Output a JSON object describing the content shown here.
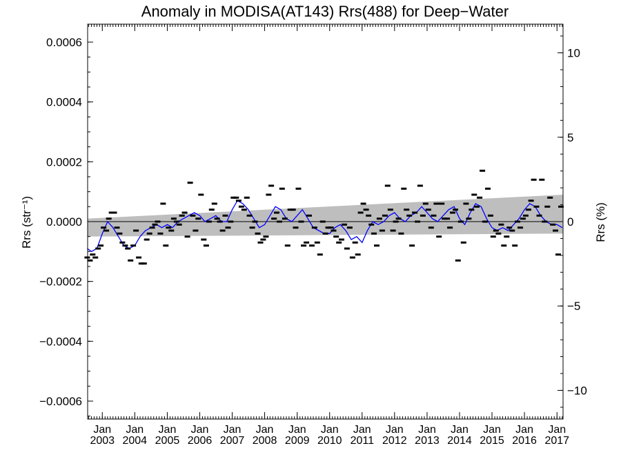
{
  "chart_data": {
    "type": "scatter",
    "title": "Anomaly in MODISA(AT143) Rrs(488) for Deep−Water",
    "ylabel_left": "Rrs (str⁻¹)",
    "ylabel_right": "Rrs (%)",
    "xlim": [
      "2002-07-20",
      "2017-03-10"
    ],
    "ylim_left": [
      -0.00066,
      0.00066
    ],
    "ylim_right": [
      -11.7,
      11.7
    ],
    "x_ticks": [
      {
        "month": "Jan",
        "year": "2003",
        "date": "2003-01-01"
      },
      {
        "month": "Jan",
        "year": "2004",
        "date": "2004-01-01"
      },
      {
        "month": "Jan",
        "year": "2005",
        "date": "2005-01-01"
      },
      {
        "month": "Jan",
        "year": "2006",
        "date": "2006-01-01"
      },
      {
        "month": "Jan",
        "year": "2007",
        "date": "2007-01-01"
      },
      {
        "month": "Jan",
        "year": "2008",
        "date": "2008-01-01"
      },
      {
        "month": "Jan",
        "year": "2009",
        "date": "2009-01-01"
      },
      {
        "month": "Jan",
        "year": "2010",
        "date": "2010-01-01"
      },
      {
        "month": "Jan",
        "year": "2011",
        "date": "2011-01-01"
      },
      {
        "month": "Jan",
        "year": "2012",
        "date": "2012-01-01"
      },
      {
        "month": "Jan",
        "year": "2013",
        "date": "2013-01-01"
      },
      {
        "month": "Jan",
        "year": "2014",
        "date": "2014-01-01"
      },
      {
        "month": "Jan",
        "year": "2015",
        "date": "2015-01-01"
      },
      {
        "month": "Jan",
        "year": "2016",
        "date": "2016-01-01"
      },
      {
        "month": "Jan",
        "year": "2017",
        "date": "2017-01-01"
      }
    ],
    "y_ticks_left": [
      {
        "value": 0.0006,
        "label": "0.0006"
      },
      {
        "value": 0.0004,
        "label": "0.0004"
      },
      {
        "value": 0.0002,
        "label": "0.0002"
      },
      {
        "value": 0.0,
        "label": "0.0000"
      },
      {
        "value": -0.0002,
        "label": "−0.0002"
      },
      {
        "value": -0.0004,
        "label": "−0.0004"
      },
      {
        "value": -0.0006,
        "label": "−0.0006"
      }
    ],
    "y_ticks_right": [
      {
        "value": 10,
        "label": "10"
      },
      {
        "value": 5,
        "label": "5"
      },
      {
        "value": 0,
        "label": "0"
      },
      {
        "value": -5,
        "label": "−5"
      },
      {
        "value": -10,
        "label": "−10"
      }
    ],
    "zero_line": 0.0,
    "band": {
      "start": {
        "date": "2002-07-20",
        "lower": -5e-05,
        "upper": 1e-05
      },
      "end": {
        "date": "2017-03-10",
        "lower": -4e-05,
        "upper": 9e-05
      },
      "color": "#bebebe"
    },
    "smoothed_line": {
      "color": "#0000ff",
      "points": [
        [
          "2002-07-15",
          -9e-05
        ],
        [
          "2002-09-01",
          -0.0001
        ],
        [
          "2002-11-01",
          -9e-05
        ],
        [
          "2003-01-01",
          -4e-05
        ],
        [
          "2003-03-01",
          0.0
        ],
        [
          "2003-05-01",
          -2e-05
        ],
        [
          "2003-07-01",
          -5e-05
        ],
        [
          "2003-09-01",
          -8e-05
        ],
        [
          "2003-11-01",
          -9e-05
        ],
        [
          "2004-01-01",
          -8e-05
        ],
        [
          "2004-03-01",
          -5e-05
        ],
        [
          "2004-05-01",
          -3e-05
        ],
        [
          "2004-07-01",
          -2e-05
        ],
        [
          "2004-09-01",
          -1e-05
        ],
        [
          "2004-11-01",
          -2e-05
        ],
        [
          "2005-01-01",
          -1e-05
        ],
        [
          "2005-03-01",
          -2e-05
        ],
        [
          "2005-05-01",
          0.0
        ],
        [
          "2005-07-01",
          1e-05
        ],
        [
          "2005-09-01",
          2e-05
        ],
        [
          "2005-11-01",
          3e-05
        ],
        [
          "2006-01-01",
          2e-05
        ],
        [
          "2006-03-01",
          0.0
        ],
        [
          "2006-05-01",
          1e-05
        ],
        [
          "2006-07-01",
          2e-05
        ],
        [
          "2006-09-01",
          0.0
        ],
        [
          "2006-11-01",
          0.0
        ],
        [
          "2007-01-01",
          4e-05
        ],
        [
          "2007-03-01",
          7e-05
        ],
        [
          "2007-05-01",
          6e-05
        ],
        [
          "2007-07-01",
          4e-05
        ],
        [
          "2007-09-01",
          1e-05
        ],
        [
          "2007-11-01",
          -2e-05
        ],
        [
          "2008-01-01",
          -1e-05
        ],
        [
          "2008-03-01",
          2e-05
        ],
        [
          "2008-05-01",
          5e-05
        ],
        [
          "2008-07-01",
          4e-05
        ],
        [
          "2008-09-01",
          1e-05
        ],
        [
          "2008-11-01",
          0.0
        ],
        [
          "2009-01-01",
          2e-05
        ],
        [
          "2009-03-01",
          4e-05
        ],
        [
          "2009-05-01",
          1e-05
        ],
        [
          "2009-07-01",
          -2e-05
        ],
        [
          "2009-09-01",
          -3e-05
        ],
        [
          "2009-11-01",
          -4e-05
        ],
        [
          "2010-01-01",
          -4e-05
        ],
        [
          "2010-03-01",
          -2e-05
        ],
        [
          "2010-05-01",
          -1e-05
        ],
        [
          "2010-07-01",
          -3e-05
        ],
        [
          "2010-09-01",
          -6e-05
        ],
        [
          "2010-11-01",
          -5e-05
        ],
        [
          "2011-01-01",
          -7e-05
        ],
        [
          "2011-03-01",
          -3e-05
        ],
        [
          "2011-05-01",
          0.0
        ],
        [
          "2011-07-01",
          -1e-05
        ],
        [
          "2011-09-01",
          0.0
        ],
        [
          "2011-11-01",
          2e-05
        ],
        [
          "2012-01-01",
          3e-05
        ],
        [
          "2012-03-01",
          1e-05
        ],
        [
          "2012-05-01",
          0.0
        ],
        [
          "2012-07-01",
          2e-05
        ],
        [
          "2012-09-01",
          3e-05
        ],
        [
          "2012-11-01",
          5e-05
        ],
        [
          "2013-01-01",
          3e-05
        ],
        [
          "2013-03-01",
          1e-05
        ],
        [
          "2013-05-01",
          0.0
        ],
        [
          "2013-07-01",
          2e-05
        ],
        [
          "2013-09-01",
          4e-05
        ],
        [
          "2013-11-01",
          5e-05
        ],
        [
          "2014-01-01",
          1e-05
        ],
        [
          "2014-03-01",
          -1e-05
        ],
        [
          "2014-05-01",
          3e-05
        ],
        [
          "2014-07-01",
          6e-05
        ],
        [
          "2014-09-01",
          5e-05
        ],
        [
          "2014-11-01",
          1e-05
        ],
        [
          "2015-01-01",
          -2e-05
        ],
        [
          "2015-03-01",
          -3e-05
        ],
        [
          "2015-05-01",
          -2e-05
        ],
        [
          "2015-07-01",
          -3e-05
        ],
        [
          "2015-09-01",
          -1e-05
        ],
        [
          "2015-11-01",
          1e-05
        ],
        [
          "2016-01-01",
          4e-05
        ],
        [
          "2016-03-01",
          6e-05
        ],
        [
          "2016-05-01",
          5e-05
        ],
        [
          "2016-07-01",
          2e-05
        ],
        [
          "2016-09-01",
          0.0
        ],
        [
          "2016-11-01",
          -1e-05
        ],
        [
          "2017-01-01",
          -1e-05
        ],
        [
          "2017-03-01",
          -2e-05
        ]
      ]
    },
    "monthly_points": {
      "color": "#000000",
      "points": [
        [
          "2002-07-15",
          -0.00012
        ],
        [
          "2002-08-15",
          -0.00013
        ],
        [
          "2002-09-15",
          -0.00011
        ],
        [
          "2002-10-15",
          -0.00012
        ],
        [
          "2002-11-15",
          -9e-05
        ],
        [
          "2002-12-15",
          -8e-05
        ],
        [
          "2003-01-15",
          -2e-05
        ],
        [
          "2003-02-15",
          -3e-05
        ],
        [
          "2003-03-15",
          1e-05
        ],
        [
          "2003-04-15",
          3e-05
        ],
        [
          "2003-05-15",
          3e-05
        ],
        [
          "2003-06-15",
          -2e-05
        ],
        [
          "2003-07-15",
          -4e-05
        ],
        [
          "2003-08-15",
          -7e-05
        ],
        [
          "2003-09-15",
          -8e-05
        ],
        [
          "2003-10-15",
          -9e-05
        ],
        [
          "2003-11-15",
          -0.00013
        ],
        [
          "2003-12-15",
          -8e-05
        ],
        [
          "2004-01-15",
          -3e-05
        ],
        [
          "2004-02-15",
          -0.00012
        ],
        [
          "2004-03-15",
          -0.00014
        ],
        [
          "2004-04-15",
          -0.00014
        ],
        [
          "2004-05-15",
          -6e-05
        ],
        [
          "2004-06-15",
          -4e-05
        ],
        [
          "2004-07-15",
          -2e-05
        ],
        [
          "2004-08-15",
          -1e-05
        ],
        [
          "2004-09-15",
          0.0
        ],
        [
          "2004-10-15",
          -4e-05
        ],
        [
          "2004-11-15",
          6e-05
        ],
        [
          "2004-12-15",
          -8e-05
        ],
        [
          "2005-01-15",
          -2e-05
        ],
        [
          "2005-02-15",
          -3e-05
        ],
        [
          "2005-03-15",
          1e-05
        ],
        [
          "2005-04-15",
          0.0
        ],
        [
          "2005-05-15",
          -1e-05
        ],
        [
          "2005-06-15",
          2e-05
        ],
        [
          "2005-07-15",
          3e-05
        ],
        [
          "2005-08-15",
          -5e-05
        ],
        [
          "2005-09-15",
          0.00013
        ],
        [
          "2005-10-15",
          2e-05
        ],
        [
          "2005-11-15",
          -3e-05
        ],
        [
          "2005-12-15",
          1e-05
        ],
        [
          "2006-01-15",
          9e-05
        ],
        [
          "2006-02-15",
          -6e-05
        ],
        [
          "2006-03-15",
          -8e-05
        ],
        [
          "2006-04-15",
          0.0
        ],
        [
          "2006-05-15",
          4e-05
        ],
        [
          "2006-06-15",
          6e-05
        ],
        [
          "2006-07-15",
          1e-05
        ],
        [
          "2006-08-15",
          0.0
        ],
        [
          "2006-09-15",
          -3e-05
        ],
        [
          "2006-10-15",
          2e-05
        ],
        [
          "2006-11-15",
          -2e-05
        ],
        [
          "2006-12-15",
          0.0
        ],
        [
          "2007-01-15",
          8e-05
        ],
        [
          "2007-02-15",
          8e-05
        ],
        [
          "2007-03-15",
          7e-05
        ],
        [
          "2007-04-15",
          5e-05
        ],
        [
          "2007-05-15",
          4e-05
        ],
        [
          "2007-06-15",
          8e-05
        ],
        [
          "2007-07-15",
          2e-05
        ],
        [
          "2007-08-15",
          -2e-05
        ],
        [
          "2007-09-15",
          0.0
        ],
        [
          "2007-10-15",
          -4e-05
        ],
        [
          "2007-11-15",
          -7e-05
        ],
        [
          "2007-12-15",
          -6e-05
        ],
        [
          "2008-01-15",
          -5e-05
        ],
        [
          "2008-02-15",
          9e-05
        ],
        [
          "2008-03-15",
          0.00012
        ],
        [
          "2008-04-15",
          1e-05
        ],
        [
          "2008-05-15",
          3e-05
        ],
        [
          "2008-06-15",
          0.0
        ],
        [
          "2008-07-15",
          0.00011
        ],
        [
          "2008-08-15",
          1e-05
        ],
        [
          "2008-09-15",
          -8e-05
        ],
        [
          "2008-10-15",
          4e-05
        ],
        [
          "2008-11-15",
          4e-05
        ],
        [
          "2008-12-15",
          -2e-05
        ],
        [
          "2009-01-15",
          0.00011
        ],
        [
          "2009-02-15",
          0.0
        ],
        [
          "2009-03-15",
          -8e-05
        ],
        [
          "2009-04-15",
          -7e-05
        ],
        [
          "2009-05-15",
          2e-05
        ],
        [
          "2009-06-15",
          -8e-05
        ],
        [
          "2009-07-15",
          -2e-05
        ],
        [
          "2009-08-15",
          -7e-05
        ],
        [
          "2009-09-15",
          -0.00011
        ],
        [
          "2009-10-15",
          0.0
        ],
        [
          "2009-11-15",
          -4e-05
        ],
        [
          "2009-12-15",
          -2e-05
        ],
        [
          "2010-01-15",
          -2e-05
        ],
        [
          "2010-02-15",
          -3e-05
        ],
        [
          "2010-03-15",
          -5e-05
        ],
        [
          "2010-04-15",
          -7e-05
        ],
        [
          "2010-05-15",
          -6e-05
        ],
        [
          "2010-06-15",
          -1e-05
        ],
        [
          "2010-07-15",
          -9e-05
        ],
        [
          "2010-08-15",
          -2e-05
        ],
        [
          "2010-09-15",
          -0.00012
        ],
        [
          "2010-10-15",
          -7e-05
        ],
        [
          "2010-11-15",
          -0.00011
        ],
        [
          "2010-12-15",
          3e-05
        ],
        [
          "2011-01-15",
          6e-05
        ],
        [
          "2011-02-15",
          4e-05
        ],
        [
          "2011-03-15",
          2e-05
        ],
        [
          "2011-04-15",
          -1e-05
        ],
        [
          "2011-05-15",
          -4e-05
        ],
        [
          "2011-06-15",
          -8e-05
        ],
        [
          "2011-07-15",
          1e-05
        ],
        [
          "2011-08-15",
          -3e-05
        ],
        [
          "2011-09-15",
          2e-05
        ],
        [
          "2011-10-15",
          0.00012
        ],
        [
          "2011-11-15",
          4e-05
        ],
        [
          "2011-12-15",
          -3e-05
        ],
        [
          "2012-01-15",
          0.0
        ],
        [
          "2012-02-15",
          1e-05
        ],
        [
          "2012-03-15",
          -4e-05
        ],
        [
          "2012-04-15",
          0.00011
        ],
        [
          "2012-05-15",
          4e-05
        ],
        [
          "2012-06-15",
          2e-05
        ],
        [
          "2012-07-15",
          -8e-05
        ],
        [
          "2012-08-15",
          3e-05
        ],
        [
          "2012-09-15",
          0.0
        ],
        [
          "2012-10-15",
          0.00012
        ],
        [
          "2012-11-15",
          2e-05
        ],
        [
          "2012-12-15",
          6e-05
        ],
        [
          "2013-01-15",
          4e-05
        ],
        [
          "2013-02-15",
          -2e-05
        ],
        [
          "2013-03-15",
          2e-05
        ],
        [
          "2013-04-15",
          6e-05
        ],
        [
          "2013-05-15",
          -5e-05
        ],
        [
          "2013-06-15",
          6e-05
        ],
        [
          "2013-07-15",
          1e-05
        ],
        [
          "2013-08-15",
          1e-05
        ],
        [
          "2013-09-15",
          -2e-05
        ],
        [
          "2013-10-15",
          3e-05
        ],
        [
          "2013-11-15",
          4e-05
        ],
        [
          "2013-12-15",
          -0.00013
        ],
        [
          "2014-01-15",
          0.0
        ],
        [
          "2014-02-15",
          -7e-05
        ],
        [
          "2014-03-15",
          6e-05
        ],
        [
          "2014-04-15",
          1e-05
        ],
        [
          "2014-05-15",
          4e-05
        ],
        [
          "2014-06-15",
          9e-05
        ],
        [
          "2014-07-15",
          5e-05
        ],
        [
          "2014-08-15",
          8e-05
        ],
        [
          "2014-09-15",
          0.00017
        ],
        [
          "2014-10-15",
          0.0
        ],
        [
          "2014-11-15",
          0.00011
        ],
        [
          "2014-12-15",
          2e-05
        ],
        [
          "2015-01-15",
          -5e-05
        ],
        [
          "2015-02-15",
          -3e-05
        ],
        [
          "2015-03-15",
          -4e-05
        ],
        [
          "2015-04-15",
          -1e-05
        ],
        [
          "2015-05-15",
          -8e-05
        ],
        [
          "2015-06-15",
          -5e-05
        ],
        [
          "2015-07-15",
          -2e-05
        ],
        [
          "2015-08-15",
          -3e-05
        ],
        [
          "2015-09-15",
          -8e-05
        ],
        [
          "2015-10-15",
          0.0
        ],
        [
          "2015-11-15",
          -2e-05
        ],
        [
          "2015-12-15",
          1e-05
        ],
        [
          "2016-01-15",
          2e-05
        ],
        [
          "2016-02-15",
          4e-05
        ],
        [
          "2016-03-15",
          7e-05
        ],
        [
          "2016-04-15",
          0.00014
        ],
        [
          "2016-05-15",
          5e-05
        ],
        [
          "2016-06-15",
          2e-05
        ],
        [
          "2016-07-15",
          0.00014
        ],
        [
          "2016-08-15",
          0.0
        ],
        [
          "2016-09-15",
          5e-05
        ],
        [
          "2016-10-15",
          8e-05
        ],
        [
          "2016-11-15",
          -1e-05
        ],
        [
          "2016-12-15",
          -3e-05
        ],
        [
          "2017-01-15",
          -0.00011
        ],
        [
          "2017-02-15",
          5e-05
        ]
      ]
    }
  }
}
